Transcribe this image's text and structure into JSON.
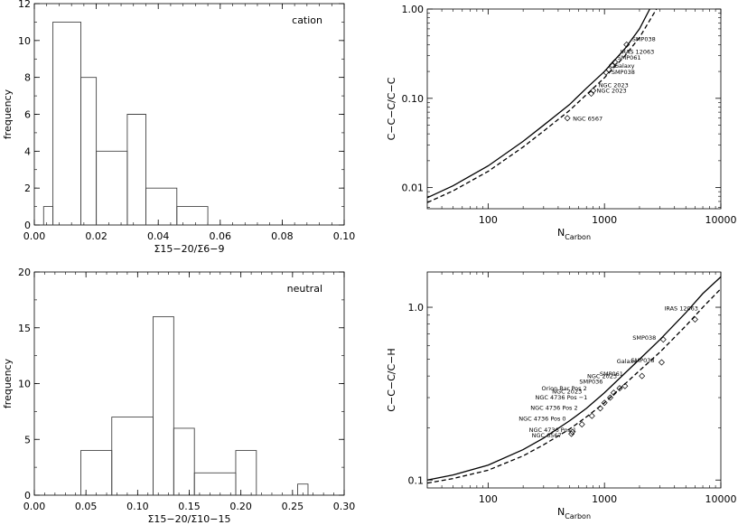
{
  "chart_data": [
    {
      "id": "p1",
      "type": "histogram",
      "panel_label": "cation",
      "xlabel": "Σ15−20/Σ6−9",
      "ylabel": "frequency",
      "xlim": [
        0.0,
        0.1
      ],
      "ylim": [
        0,
        12
      ],
      "xticks": [
        0.0,
        0.02,
        0.04,
        0.06,
        0.08,
        0.1
      ],
      "xtick_labels": [
        "0.00",
        "0.02",
        "0.04",
        "0.06",
        "0.08",
        "0.10"
      ],
      "yticks": [
        0,
        2,
        4,
        6,
        8,
        10,
        12
      ],
      "ytick_labels": [
        "0",
        "2",
        "4",
        "6",
        "8",
        "10",
        "12"
      ],
      "bins": [
        {
          "x0": 0.003,
          "x1": 0.006,
          "count": 1
        },
        {
          "x0": 0.006,
          "x1": 0.015,
          "count": 11
        },
        {
          "x0": 0.015,
          "x1": 0.02,
          "count": 8
        },
        {
          "x0": 0.02,
          "x1": 0.03,
          "count": 4
        },
        {
          "x0": 0.03,
          "x1": 0.036,
          "count": 6
        },
        {
          "x0": 0.036,
          "x1": 0.046,
          "count": 2
        },
        {
          "x0": 0.046,
          "x1": 0.056,
          "count": 1
        },
        {
          "x0": 0.056,
          "x1": 0.056,
          "count": 0
        }
      ]
    },
    {
      "id": "p2",
      "type": "line",
      "xlabel": "N",
      "xlabel_sub": "Carbon",
      "ylabel": "C−C−C/C−C",
      "xscale": "log",
      "yscale": "log",
      "xlim": [
        30,
        10000
      ],
      "ylim": [
        0.0058,
        1.0
      ],
      "xticks": [
        100,
        1000,
        10000
      ],
      "xtick_labels": [
        "100",
        "1000",
        "10000"
      ],
      "yticks": [
        0.01,
        0.1,
        1.0
      ],
      "ytick_labels": [
        "0.01",
        "0.10",
        "1.00"
      ],
      "series": [
        {
          "style": "solid",
          "points": [
            [
              30,
              0.0077
            ],
            [
              50,
              0.0105
            ],
            [
              100,
              0.0175
            ],
            [
              200,
              0.033
            ],
            [
              300,
              0.05
            ],
            [
              500,
              0.085
            ],
            [
              700,
              0.13
            ],
            [
              1000,
              0.2
            ],
            [
              1500,
              0.36
            ],
            [
              2000,
              0.6
            ],
            [
              2450,
              1.0
            ]
          ]
        },
        {
          "style": "dashed",
          "points": [
            [
              30,
              0.0068
            ],
            [
              50,
              0.0092
            ],
            [
              100,
              0.0152
            ],
            [
              200,
              0.0285
            ],
            [
              300,
              0.043
            ],
            [
              500,
              0.073
            ],
            [
              700,
              0.11
            ],
            [
              1000,
              0.17
            ],
            [
              1500,
              0.3
            ],
            [
              2000,
              0.48
            ],
            [
              2800,
              1.0
            ]
          ]
        }
      ],
      "points": [
        {
          "x": 480,
          "y": 0.06,
          "label": "NGC 6567"
        },
        {
          "x": 770,
          "y": 0.113,
          "label": "NGC 2023"
        },
        {
          "x": 800,
          "y": 0.122,
          "label": "NGC 2023"
        },
        {
          "x": 1030,
          "y": 0.195,
          "label": "SMP038"
        },
        {
          "x": 1090,
          "y": 0.21,
          "label": "Galaxy"
        },
        {
          "x": 1160,
          "y": 0.235,
          "label": "SMP061"
        },
        {
          "x": 1230,
          "y": 0.255,
          "label": "IRAS 12063"
        },
        {
          "x": 1550,
          "y": 0.4,
          "label": "SMP038"
        }
      ]
    },
    {
      "id": "p3",
      "type": "histogram",
      "panel_label": "neutral",
      "xlabel": "Σ15−20/Σ10−15",
      "ylabel": "frequency",
      "xlim": [
        0.0,
        0.3
      ],
      "ylim": [
        0,
        20
      ],
      "xticks": [
        0.0,
        0.05,
        0.1,
        0.15,
        0.2,
        0.25,
        0.3
      ],
      "xtick_labels": [
        "0.00",
        "0.05",
        "0.10",
        "0.15",
        "0.20",
        "0.25",
        "0.30"
      ],
      "yticks": [
        0,
        5,
        10,
        15,
        20
      ],
      "ytick_labels": [
        "0",
        "5",
        "10",
        "15",
        "20"
      ],
      "bins": [
        {
          "x0": 0.045,
          "x1": 0.075,
          "count": 4
        },
        {
          "x0": 0.075,
          "x1": 0.115,
          "count": 7
        },
        {
          "x0": 0.115,
          "x1": 0.135,
          "count": 16
        },
        {
          "x0": 0.135,
          "x1": 0.155,
          "count": 6
        },
        {
          "x0": 0.155,
          "x1": 0.195,
          "count": 2
        },
        {
          "x0": 0.195,
          "x1": 0.215,
          "count": 4
        },
        {
          "x0": 0.215,
          "x1": 0.255,
          "count": 0
        },
        {
          "x0": 0.255,
          "x1": 0.265,
          "count": 1
        }
      ]
    },
    {
      "id": "p4",
      "type": "line",
      "xlabel": "N",
      "xlabel_sub": "Carbon",
      "ylabel": "C−C−C/C−H",
      "xscale": "log",
      "yscale": "log",
      "xlim": [
        30,
        10000
      ],
      "ylim": [
        0.09,
        1.6
      ],
      "xticks": [
        100,
        1000,
        10000
      ],
      "xtick_labels": [
        "100",
        "1000",
        "10000"
      ],
      "yticks": [
        0.1,
        1.0
      ],
      "ytick_labels": [
        "0.1",
        "1.0"
      ],
      "series": [
        {
          "style": "solid",
          "points": [
            [
              30,
              0.1
            ],
            [
              50,
              0.107
            ],
            [
              100,
              0.122
            ],
            [
              200,
              0.15
            ],
            [
              300,
              0.175
            ],
            [
              500,
              0.22
            ],
            [
              700,
              0.26
            ],
            [
              1000,
              0.32
            ],
            [
              2000,
              0.5
            ],
            [
              3000,
              0.65
            ],
            [
              5000,
              0.93
            ],
            [
              7000,
              1.2
            ],
            [
              10000,
              1.5
            ]
          ]
        },
        {
          "style": "dashed",
          "points": [
            [
              30,
              0.096
            ],
            [
              50,
              0.102
            ],
            [
              100,
              0.114
            ],
            [
              200,
              0.138
            ],
            [
              300,
              0.16
            ],
            [
              500,
              0.197
            ],
            [
              700,
              0.232
            ],
            [
              1000,
              0.28
            ],
            [
              2000,
              0.43
            ],
            [
              3000,
              0.55
            ],
            [
              5000,
              0.78
            ],
            [
              7000,
              1.0
            ],
            [
              10000,
              1.28
            ]
          ]
        }
      ],
      "points": [
        {
          "x": 520,
          "y": 0.185,
          "label": "NGC 6567"
        },
        {
          "x": 530,
          "y": 0.19,
          "label": "NGC 4736 Pos 1"
        },
        {
          "x": 640,
          "y": 0.21,
          "label": "NGC 4736 Pos 0"
        },
        {
          "x": 780,
          "y": 0.235,
          "label": "NGC 4736 Pos 2"
        },
        {
          "x": 920,
          "y": 0.26,
          "label": "NGC 4736 Pos −1"
        },
        {
          "x": 1000,
          "y": 0.28,
          "label": "NGC 2023"
        },
        {
          "x": 1120,
          "y": 0.3,
          "label": "Orion Bar Pos 2"
        },
        {
          "x": 1200,
          "y": 0.32,
          "label": "SMP036"
        },
        {
          "x": 1350,
          "y": 0.34,
          "label": "NGC 2023"
        },
        {
          "x": 1500,
          "y": 0.35,
          "label": "SMP061"
        },
        {
          "x": 2100,
          "y": 0.4,
          "label": "Galaxy"
        },
        {
          "x": 3100,
          "y": 0.48,
          "label": "SMP038"
        },
        {
          "x": 3200,
          "y": 0.65,
          "label": "SMP038"
        },
        {
          "x": 6000,
          "y": 0.85,
          "label": "IRAS 12063"
        }
      ]
    }
  ]
}
